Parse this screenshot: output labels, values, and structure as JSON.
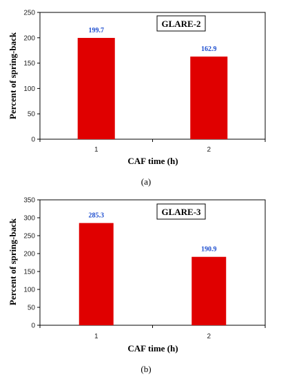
{
  "chart_data": [
    {
      "type": "bar",
      "title": "GLARE-2",
      "caption": "(a)",
      "categories": [
        "1",
        "2"
      ],
      "values": [
        199.7,
        162.9
      ],
      "data_labels": [
        "199.7",
        "162.9"
      ],
      "xlabel": "CAF time (h)",
      "ylabel": "Percent of spring-back",
      "ylim": [
        0,
        250
      ],
      "yticks": [
        "0",
        "50",
        "100",
        "150",
        "200",
        "250"
      ],
      "grid": false,
      "bar_color": "#e00000",
      "label_color": "#1f4fcf"
    },
    {
      "type": "bar",
      "title": "GLARE-3",
      "caption": "(b)",
      "categories": [
        "1",
        "2"
      ],
      "values": [
        285.3,
        190.9
      ],
      "data_labels": [
        "285.3",
        "190.9"
      ],
      "xlabel": "CAF time (h)",
      "ylabel": "Percent of spring-back",
      "ylim": [
        0,
        350
      ],
      "yticks": [
        "0",
        "50",
        "100",
        "150",
        "200",
        "250",
        "300",
        "350"
      ],
      "grid": false,
      "bar_color": "#e00000",
      "label_color": "#1f4fcf"
    }
  ]
}
